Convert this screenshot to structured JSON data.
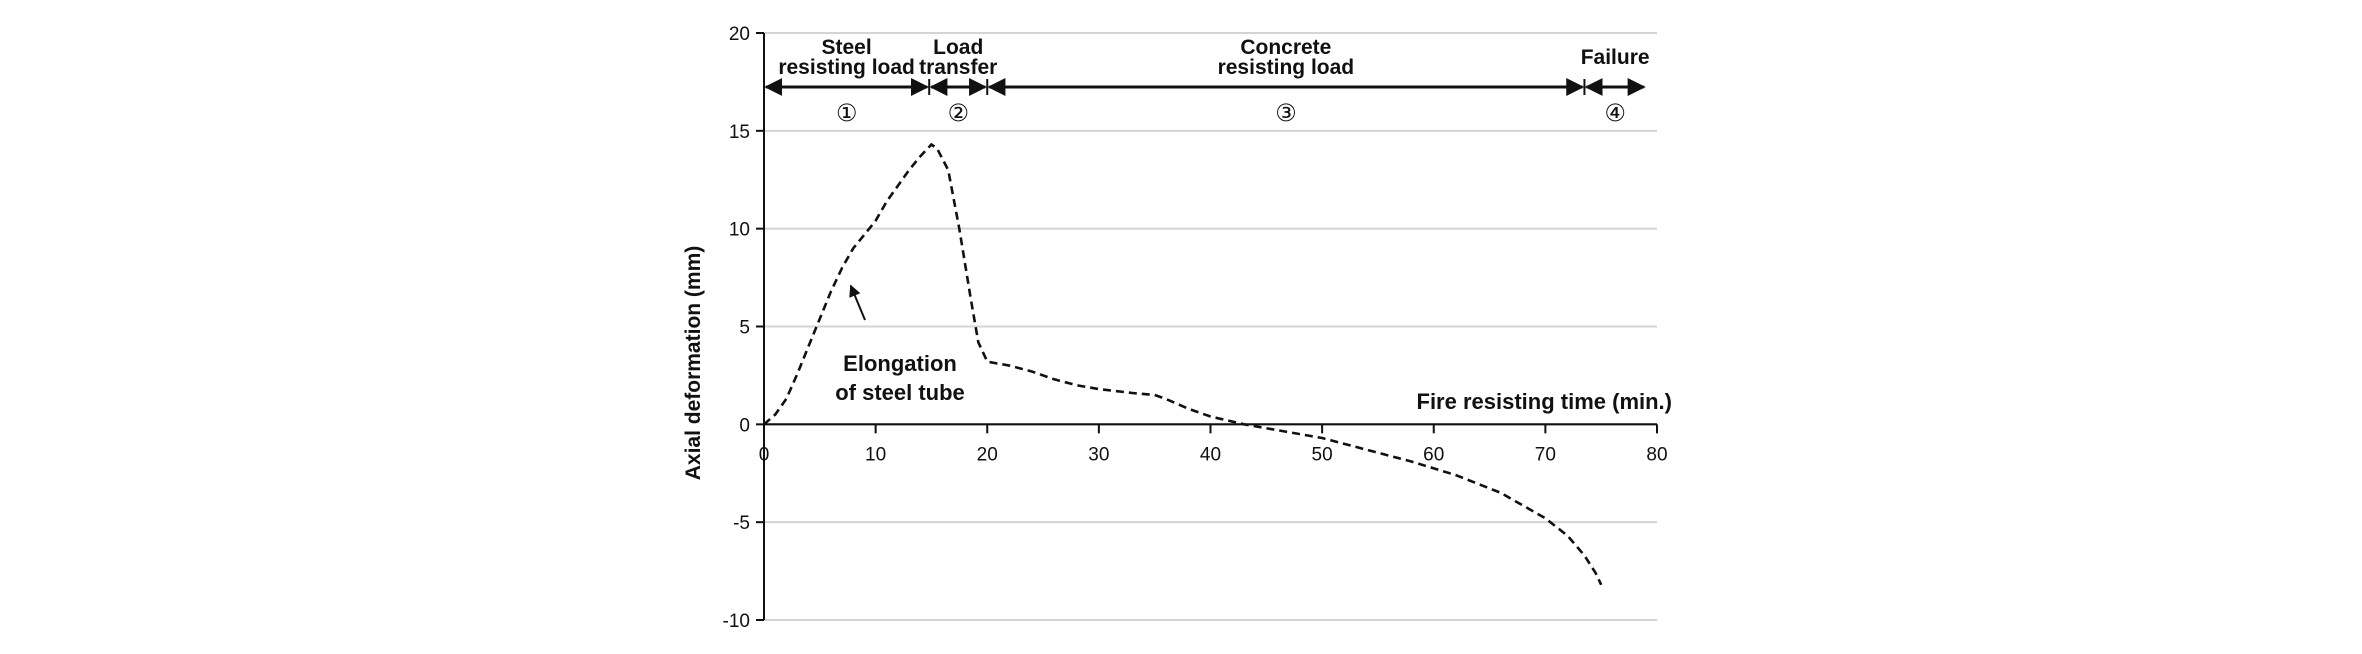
{
  "chart_data": {
    "type": "line",
    "title": "",
    "ylabel": "Axial deformation (mm)",
    "xlabel": "Fire resisting time (min.)",
    "xlim": [
      0,
      80
    ],
    "ylim": [
      -10,
      20
    ],
    "x_ticks": [
      0,
      10,
      20,
      30,
      40,
      50,
      60,
      70,
      80
    ],
    "y_ticks": [
      20,
      15,
      10,
      5,
      0,
      -5,
      -10
    ],
    "grid": true,
    "legend": "none",
    "series": [
      {
        "line_style": "dashed",
        "color": "#111111",
        "points": [
          [
            0,
            0
          ],
          [
            1,
            0.5
          ],
          [
            2,
            1.3
          ],
          [
            3,
            2.6
          ],
          [
            4,
            4.0
          ],
          [
            5,
            5.4
          ],
          [
            6,
            6.8
          ],
          [
            7,
            8.0
          ],
          [
            8,
            9.0
          ],
          [
            9,
            9.7
          ],
          [
            10,
            10.4
          ],
          [
            11,
            11.4
          ],
          [
            12,
            12.2
          ],
          [
            13,
            13.0
          ],
          [
            14,
            13.7
          ],
          [
            15,
            14.3
          ],
          [
            15.5,
            14.1
          ],
          [
            16.5,
            13.0
          ],
          [
            17.5,
            10.0
          ],
          [
            18.5,
            6.5
          ],
          [
            19.2,
            4.2
          ],
          [
            20,
            3.2
          ],
          [
            22,
            3.0
          ],
          [
            24,
            2.7
          ],
          [
            26,
            2.3
          ],
          [
            28,
            2.0
          ],
          [
            30,
            1.8
          ],
          [
            33,
            1.6
          ],
          [
            35,
            1.5
          ],
          [
            36,
            1.3
          ],
          [
            38,
            0.8
          ],
          [
            40,
            0.4
          ],
          [
            43,
            0.0
          ],
          [
            46,
            -0.3
          ],
          [
            50,
            -0.7
          ],
          [
            54,
            -1.3
          ],
          [
            58,
            -1.9
          ],
          [
            62,
            -2.6
          ],
          [
            66,
            -3.5
          ],
          [
            70,
            -4.8
          ],
          [
            72,
            -5.7
          ],
          [
            73.5,
            -6.7
          ],
          [
            74.5,
            -7.6
          ],
          [
            75,
            -8.2
          ]
        ]
      }
    ],
    "phases": [
      {
        "label_line1": "Steel",
        "label_line2": "resisting load",
        "number": "①",
        "start": 0,
        "end": 14.8
      },
      {
        "label_line1": "Load",
        "label_line2": "transfer",
        "number": "②",
        "start": 14.8,
        "end": 20
      },
      {
        "label_line1": "Concrete",
        "label_line2": "resisting load",
        "number": "③",
        "start": 20,
        "end": 73.5
      },
      {
        "label_line1": "Failure",
        "label_line2": "",
        "number": "④",
        "start": 73.5,
        "end": 79
      }
    ],
    "annotations": [
      {
        "line1": "Elongation",
        "line2": "of steel tube",
        "target": [
          7.5,
          7.5
        ]
      }
    ]
  }
}
